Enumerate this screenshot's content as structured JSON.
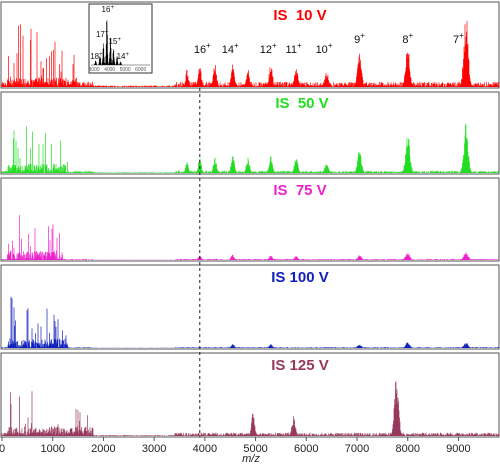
{
  "chart_data": {
    "type": "line",
    "xlabel": "m/z",
    "ylabel": "",
    "xlim": [
      0,
      9800
    ],
    "xticks": [
      "0",
      "1000",
      "2000",
      "3000",
      "4000",
      "5000",
      "6000",
      "7000",
      "8000",
      "9000"
    ],
    "xtick_values": [
      0,
      1000,
      2000,
      3000,
      4000,
      5000,
      6000,
      7000,
      8000,
      9000
    ],
    "reference_line": {
      "x": 3900,
      "style": "dashed"
    },
    "series": [
      {
        "label": "IS  10 V",
        "color": "#ff0000",
        "noise_level": 0.18,
        "low_mass_cluster": {
          "start": 100,
          "end": 1500,
          "max_height": 0.9
        },
        "peaks": [
          {
            "x": 3650,
            "h": 0.22
          },
          {
            "x": 3900,
            "h": 0.28
          },
          {
            "x": 4200,
            "h": 0.32
          },
          {
            "x": 4550,
            "h": 0.3
          },
          {
            "x": 4850,
            "h": 0.22
          },
          {
            "x": 5300,
            "h": 0.28
          },
          {
            "x": 5800,
            "h": 0.26
          },
          {
            "x": 6400,
            "h": 0.2
          },
          {
            "x": 7050,
            "h": 0.45
          },
          {
            "x": 8000,
            "h": 0.5
          },
          {
            "x": 9150,
            "h": 0.9
          }
        ],
        "charge_labels": [
          {
            "x": 3950,
            "num": "16",
            "sup": "+"
          },
          {
            "x": 4500,
            "num": "14",
            "sup": "+"
          },
          {
            "x": 5250,
            "num": "12",
            "sup": "+"
          },
          {
            "x": 5750,
            "num": "11",
            "sup": "+"
          },
          {
            "x": 6350,
            "num": "10",
            "sup": "+"
          },
          {
            "x": 7050,
            "num": "9",
            "sup": "+"
          },
          {
            "x": 8000,
            "num": "8",
            "sup": "+"
          },
          {
            "x": 9000,
            "num": "7",
            "sup": "+"
          }
        ]
      },
      {
        "label": "IS  50 V",
        "color": "#22dd22",
        "noise_level": 0.08,
        "low_mass_cluster": {
          "start": 100,
          "end": 1300,
          "max_height": 0.75
        },
        "peaks": [
          {
            "x": 3650,
            "h": 0.15
          },
          {
            "x": 3900,
            "h": 0.2
          },
          {
            "x": 4200,
            "h": 0.22
          },
          {
            "x": 4550,
            "h": 0.25
          },
          {
            "x": 4850,
            "h": 0.2
          },
          {
            "x": 5300,
            "h": 0.22
          },
          {
            "x": 5800,
            "h": 0.2
          },
          {
            "x": 6400,
            "h": 0.13
          },
          {
            "x": 7050,
            "h": 0.3
          },
          {
            "x": 8000,
            "h": 0.55
          },
          {
            "x": 9150,
            "h": 0.65
          }
        ],
        "charge_labels": []
      },
      {
        "label": "IS  75 V",
        "color": "#ee22cc",
        "noise_level": 0.04,
        "low_mass_cluster": {
          "start": 100,
          "end": 1200,
          "max_height": 0.8
        },
        "peaks": [
          {
            "x": 3900,
            "h": 0.06
          },
          {
            "x": 4550,
            "h": 0.07
          },
          {
            "x": 5300,
            "h": 0.06
          },
          {
            "x": 5800,
            "h": 0.05
          },
          {
            "x": 7050,
            "h": 0.07
          },
          {
            "x": 8000,
            "h": 0.1
          },
          {
            "x": 9150,
            "h": 0.1
          }
        ],
        "charge_labels": []
      },
      {
        "label": "IS 100 V",
        "color": "#1122bb",
        "noise_level": 0.03,
        "low_mass_cluster": {
          "start": 100,
          "end": 1300,
          "max_height": 0.85
        },
        "peaks": [
          {
            "x": 4550,
            "h": 0.05
          },
          {
            "x": 5300,
            "h": 0.05
          },
          {
            "x": 7050,
            "h": 0.05
          },
          {
            "x": 8000,
            "h": 0.07
          },
          {
            "x": 9150,
            "h": 0.07
          }
        ],
        "charge_labels": []
      },
      {
        "label": "IS 125 V",
        "color": "#99385d",
        "noise_level": 0.12,
        "low_mass_cluster": {
          "start": 100,
          "end": 1800,
          "max_height": 0.7
        },
        "peaks": [
          {
            "x": 7780,
            "h": 0.8
          },
          {
            "x": 5750,
            "h": 0.25
          },
          {
            "x": 4950,
            "h": 0.3
          }
        ],
        "charge_labels": []
      }
    ],
    "inset": {
      "peaks": [
        {
          "x": 3100,
          "h": 0.1
        },
        {
          "x": 3380,
          "h": 0.22
        },
        {
          "x": 3600,
          "h": 0.45
        },
        {
          "x": 3820,
          "h": 0.95
        },
        {
          "x": 4050,
          "h": 0.6
        },
        {
          "x": 4250,
          "h": 0.38
        },
        {
          "x": 4480,
          "h": 0.18
        },
        {
          "x": 4700,
          "h": 0.08
        }
      ],
      "xlim": [
        2800,
        6600
      ],
      "ticks": [
        "3000",
        "4000",
        "5000",
        "6000"
      ],
      "tick_values": [
        3000,
        4000,
        5000,
        6000
      ],
      "labels": [
        {
          "x": 3880,
          "num": "16",
          "sup": "+"
        },
        {
          "x": 3520,
          "num": "17",
          "sup": "+"
        },
        {
          "x": 4330,
          "num": "15",
          "sup": "+"
        },
        {
          "x": 3150,
          "num": "18",
          "sup": "+"
        },
        {
          "x": 4850,
          "num": "14",
          "sup": "+"
        }
      ]
    }
  }
}
